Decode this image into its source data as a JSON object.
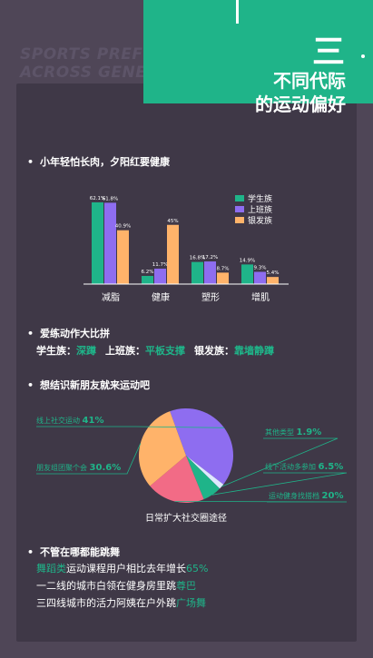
{
  "header": {
    "watermark": "SPORTS PREFERENCES ACROSS GENERATIONS",
    "section_number": "三",
    "title_line1": "不同代际",
    "title_line2": "的运动偏好"
  },
  "section1": {
    "heading": "小年轻怕长肉，夕阳红要健康"
  },
  "section2": {
    "heading": "爱练动作大比拼",
    "items": [
      {
        "group": "学生族：",
        "action": "深蹲"
      },
      {
        "group": "上班族：",
        "action": "平板支撑"
      },
      {
        "group": "银发族：",
        "action": "靠墙静蹲"
      }
    ]
  },
  "section3": {
    "heading": "想结识新朋友就来运动吧"
  },
  "section4": {
    "heading": "不管在哪都能跳舞",
    "line1_hl": "舞蹈类",
    "line1_text": "运动课程用户相比去年增长",
    "line1_num": "65%",
    "line2_text": "一二线的城市白领在健身房里跳",
    "line2_hl": "尊巴",
    "line3_text": "三四线城市的活力阿姨在户外跳",
    "line3_hl": "广场舞"
  },
  "colors": {
    "green": "#1fb489",
    "purple": "#8e6df0",
    "orange": "#ffb36a",
    "pink": "#f26b86",
    "light_blue": "#dfe8ff"
  },
  "chart_data": [
    {
      "type": "bar",
      "categories": [
        "减脂",
        "健康",
        "塑形",
        "增肌"
      ],
      "series": [
        {
          "name": "学生族",
          "values": [
            62.1,
            6.2,
            16.8,
            14.9
          ],
          "labels": [
            "62.1%",
            "6.2%",
            "16.8%",
            "14.9%"
          ]
        },
        {
          "name": "上班族",
          "values": [
            61.8,
            11.7,
            17.2,
            9.3
          ],
          "labels": [
            "61.8%",
            "11.7%",
            "17.2%",
            "9.3%"
          ]
        },
        {
          "name": "银发族",
          "values": [
            40.9,
            45,
            8.7,
            5.4
          ],
          "labels": [
            "40.9%",
            "45%",
            "8.7%",
            "5.4%"
          ]
        }
      ],
      "legend_position": "right",
      "ylim": [
        0,
        70
      ],
      "grid": false
    },
    {
      "type": "pie",
      "title": "日常扩大社交圈途径",
      "slices": [
        {
          "label": "线上社交运动",
          "value": 41,
          "value_label": "41%",
          "color": "#8e6df0"
        },
        {
          "label": "其他类型",
          "value": 1.9,
          "value_label": "1.9%",
          "color": "#dfe8ff"
        },
        {
          "label": "线下活动多参加",
          "value": 6.5,
          "value_label": "6.5%",
          "color": "#1fb489"
        },
        {
          "label": "运动健身找搭档",
          "value": 20,
          "value_label": "20%",
          "color": "#f26b86"
        },
        {
          "label": "朋友组团聚个会",
          "value": 30.6,
          "value_label": "30.6%",
          "color": "#ffb36a"
        }
      ]
    }
  ]
}
